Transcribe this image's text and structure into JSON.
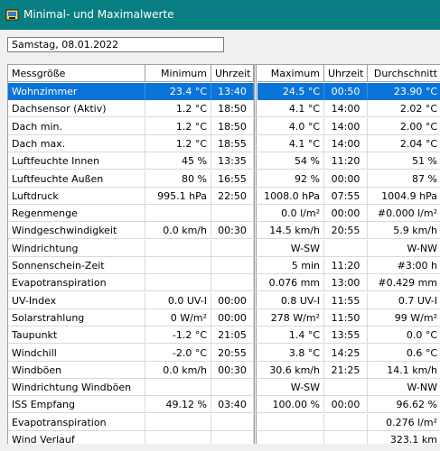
{
  "window": {
    "title": "Minimal- und Maximalwerte"
  },
  "date_field": {
    "value": "Samstag, 08.01.2022"
  },
  "headers": {
    "name": "Messgröße",
    "min": "Minimum",
    "min_time": "Uhrzeit",
    "max": "Maximum",
    "max_time": "Uhrzeit",
    "avg": "Durchschnitt"
  },
  "rows": [
    {
      "name": "Wohnzimmer",
      "min": "23.4 °C",
      "min_time": "13:40",
      "max": "24.5 °C",
      "max_time": "00:50",
      "avg": "23.90 °C",
      "selected": true
    },
    {
      "name": "Dachsensor (Aktiv)",
      "min": "1.2 °C",
      "min_time": "18:50",
      "max": "4.1 °C",
      "max_time": "14:00",
      "avg": "2.02 °C"
    },
    {
      "name": "Dach min.",
      "min": "1.2 °C",
      "min_time": "18:50",
      "max": "4.0 °C",
      "max_time": "14:00",
      "avg": "2.00 °C"
    },
    {
      "name": "Dach max.",
      "min": "1.2 °C",
      "min_time": "18:55",
      "max": "4.1 °C",
      "max_time": "14:00",
      "avg": "2.04 °C"
    },
    {
      "name": "Luftfeuchte Innen",
      "min": "45 %",
      "min_time": "13:35",
      "max": "54 %",
      "max_time": "11:20",
      "avg": "51 %"
    },
    {
      "name": "Luftfeuchte Außen",
      "min": "80 %",
      "min_time": "16:55",
      "max": "92 %",
      "max_time": "00:00",
      "avg": "87 %"
    },
    {
      "name": "Luftdruck",
      "min": "995.1 hPa",
      "min_time": "22:50",
      "max": "1008.0 hPa",
      "max_time": "07:55",
      "avg": "1004.9 hPa"
    },
    {
      "name": "Regenmenge",
      "min": "",
      "min_time": "",
      "max": "0.0 l/m²",
      "max_time": "00:00",
      "avg": "#0.000 l/m²"
    },
    {
      "name": "Windgeschwindigkeit",
      "min": "0.0 km/h",
      "min_time": "00:30",
      "max": "14.5 km/h",
      "max_time": "20:55",
      "avg": "5.9 km/h"
    },
    {
      "name": "Windrichtung",
      "min": "",
      "min_time": "",
      "max": "W-SW",
      "max_time": "",
      "avg": "W-NW"
    },
    {
      "name": "Sonnenschein-Zeit",
      "min": "",
      "min_time": "",
      "max": "5 min",
      "max_time": "11:20",
      "avg": "#3:00 h"
    },
    {
      "name": "Evapotranspiration",
      "min": "",
      "min_time": "",
      "max": "0.076 mm",
      "max_time": "13:00",
      "avg": "#0.429 mm"
    },
    {
      "name": "UV-Index",
      "min": "0.0 UV-I",
      "min_time": "00:00",
      "max": "0.8 UV-I",
      "max_time": "11:55",
      "avg": "0.7 UV-I"
    },
    {
      "name": "Solarstrahlung",
      "min": "0 W/m²",
      "min_time": "00:00",
      "max": "278 W/m²",
      "max_time": "11:50",
      "avg": "99 W/m²"
    },
    {
      "name": "Taupunkt",
      "min": "-1.2 °C",
      "min_time": "21:05",
      "max": "1.4 °C",
      "max_time": "13:55",
      "avg": "0.0 °C"
    },
    {
      "name": "Windchill",
      "min": "-2.0 °C",
      "min_time": "20:55",
      "max": "3.8 °C",
      "max_time": "14:25",
      "avg": "0.6 °C"
    },
    {
      "name": "Windböen",
      "min": "0.0 km/h",
      "min_time": "00:30",
      "max": "30.6 km/h",
      "max_time": "21:25",
      "avg": "14.1 km/h"
    },
    {
      "name": "Windrichtung Windböen",
      "min": "",
      "min_time": "",
      "max": "W-SW",
      "max_time": "",
      "avg": "W-NW"
    },
    {
      "name": "ISS Empfang",
      "min": "49.12 %",
      "min_time": "03:40",
      "max": "100.00 %",
      "max_time": "00:00",
      "avg": "96.62 %"
    },
    {
      "name": "Evapotranspiration",
      "min": "",
      "min_time": "",
      "max": "",
      "max_time": "",
      "avg": "0.276 l/m²"
    },
    {
      "name": "Wind Verlauf",
      "min": "",
      "min_time": "",
      "max": "",
      "max_time": "",
      "avg": "323.1 km"
    }
  ],
  "colors": {
    "titlebar": "#097e82",
    "selection": "#0a74d8"
  },
  "icons": {
    "app": "weather-station-icon"
  }
}
